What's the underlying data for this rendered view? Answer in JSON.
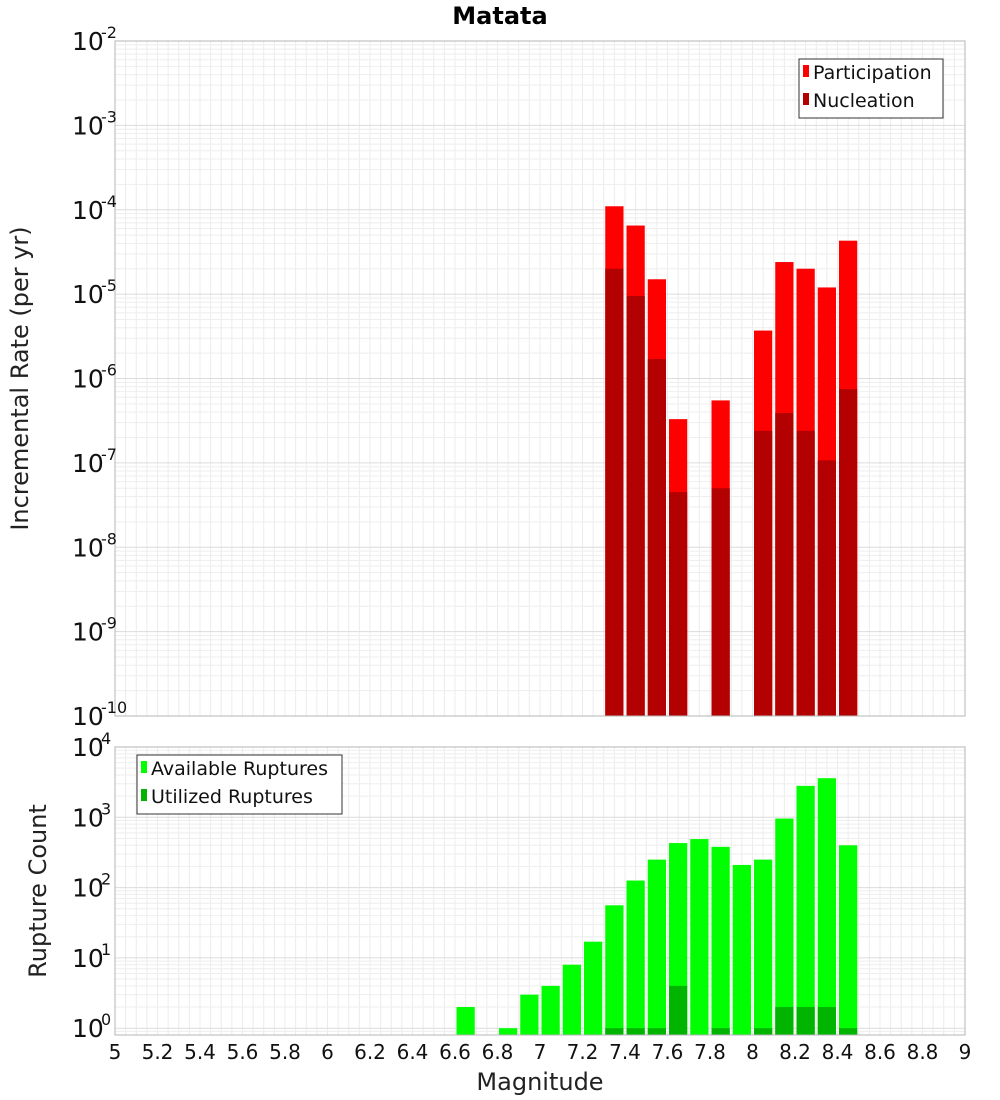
{
  "chart_data": {
    "type": "bar",
    "title": "Matata",
    "xlabel": "Magnitude",
    "xlim": [
      5,
      9
    ],
    "x_ticks": [
      "5",
      "5.2",
      "5.4",
      "5.6",
      "5.8",
      "6",
      "6.2",
      "6.4",
      "6.6",
      "6.8",
      "7",
      "7.2",
      "7.4",
      "7.6",
      "7.8",
      "8",
      "8.2",
      "8.4",
      "8.6",
      "8.8",
      "9"
    ],
    "bin_width": 0.1,
    "grid": true,
    "panels": [
      {
        "ylabel": "Incremental Rate (per yr)",
        "yscale": "log",
        "ylim": [
          1e-10,
          0.01
        ],
        "y_ticks": [
          {
            "base": "10",
            "exp": "-10"
          },
          {
            "base": "10",
            "exp": "-9"
          },
          {
            "base": "10",
            "exp": "-8"
          },
          {
            "base": "10",
            "exp": "-7"
          },
          {
            "base": "10",
            "exp": "-6"
          },
          {
            "base": "10",
            "exp": "-5"
          },
          {
            "base": "10",
            "exp": "-4"
          },
          {
            "base": "10",
            "exp": "-3"
          },
          {
            "base": "10",
            "exp": "-2"
          }
        ],
        "legend_position": "top-right",
        "x": [
          7.35,
          7.45,
          7.55,
          7.65,
          7.85,
          8.05,
          8.15,
          8.25,
          8.35,
          8.45
        ],
        "series": [
          {
            "name": "Participation",
            "color": "#ff0000",
            "values": [
              0.00011,
              6.5e-05,
              1.5e-05,
              3.3e-07,
              5.5e-07,
              3.7e-06,
              2.4e-05,
              2e-05,
              1.2e-05,
              4.3e-05
            ]
          },
          {
            "name": "Nucleation",
            "color": "#b30000",
            "values": [
              2e-05,
              9.5e-06,
              1.7e-06,
              4.5e-08,
              5e-08,
              2.4e-07,
              3.9e-07,
              2.4e-07,
              1.07e-07,
              7.5e-07
            ]
          }
        ]
      },
      {
        "ylabel": "Rupture Count",
        "yscale": "log",
        "ylim": [
          0.8,
          10000
        ],
        "y_ticks": [
          {
            "base": "10",
            "exp": "0"
          },
          {
            "base": "10",
            "exp": "1"
          },
          {
            "base": "10",
            "exp": "2"
          },
          {
            "base": "10",
            "exp": "3"
          },
          {
            "base": "10",
            "exp": "4"
          }
        ],
        "legend_position": "top-left",
        "x": [
          6.65,
          6.85,
          6.95,
          7.05,
          7.15,
          7.25,
          7.35,
          7.45,
          7.55,
          7.65,
          7.75,
          7.85,
          7.95,
          8.05,
          8.15,
          8.25,
          8.35,
          8.45
        ],
        "series": [
          {
            "name": "Available Ruptures",
            "color": "#00ff00",
            "values": [
              2,
              1,
              3,
              4,
              8,
              17,
              56,
              126,
              250,
              430,
              490,
              380,
              210,
              250,
              960,
              2800,
              3600,
              400
            ]
          },
          {
            "name": "Utilized Ruptures",
            "color": "#00b400",
            "values": [
              0,
              0,
              0,
              0,
              0,
              0,
              1,
              1,
              1,
              4,
              0,
              1,
              0,
              1,
              2,
              2,
              2,
              1
            ]
          }
        ]
      }
    ]
  }
}
